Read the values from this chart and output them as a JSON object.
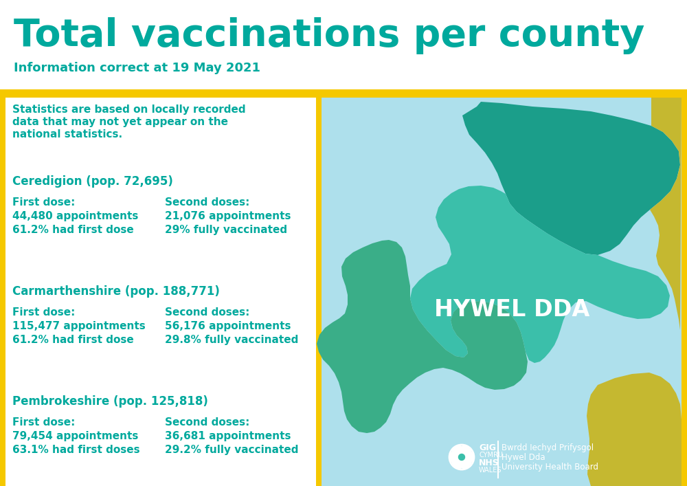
{
  "title": "Total vaccinations per county",
  "subtitle": "Information correct at 19 May 2021",
  "title_color": "#00A99D",
  "subtitle_color": "#00A99D",
  "background_color": "#FFFFFF",
  "yellow_color": "#F5C800",
  "teal_color": "#00A99D",
  "light_blue_color": "#AEE0EC",
  "dark_teal": "#1B9E8A",
  "mid_teal": "#3BBFAA",
  "green_teal": "#3AAE88",
  "olive_yellow": "#C5B830",
  "stats_note_line1": "Statistics are based on locally recorded",
  "stats_note_line2": "data that may not yet appear on the",
  "stats_note_line3": "national statistics.",
  "counties": [
    {
      "name": "Ceredigion (pop. 72,695)",
      "first_dose_label": "First dose:",
      "first_dose_line1": "44,480 appointments",
      "first_dose_line2": "61.2% had first dose",
      "second_dose_label": "Second doses:",
      "second_dose_line1": "21,076 appointments",
      "second_dose_line2": "29% fully vaccinated"
    },
    {
      "name": "Carmarthenshire (pop. 188,771)",
      "first_dose_label": "First dose:",
      "first_dose_line1": "115,477 appointments",
      "first_dose_line2": "61.2% had first dose",
      "second_dose_label": "Second doses:",
      "second_dose_line1": "56,176 appointments",
      "second_dose_line2": "29.8% fully vaccinated"
    },
    {
      "name": "Pembrokeshire (pop. 125,818)",
      "first_dose_label": "First dose:",
      "first_dose_line1": "79,454 appointments",
      "first_dose_line2": "63.1% had first doses",
      "second_dose_label": "Second doses:",
      "second_dose_line1": "36,681 appointments",
      "second_dose_line2": "29.2% fully vaccinated"
    }
  ],
  "map_label": "HYWEL DDA",
  "logo_text5": "Bwrdd Iechyd Prifysgol",
  "logo_text6": "Hywel Dda",
  "logo_text7": "University Health Board"
}
